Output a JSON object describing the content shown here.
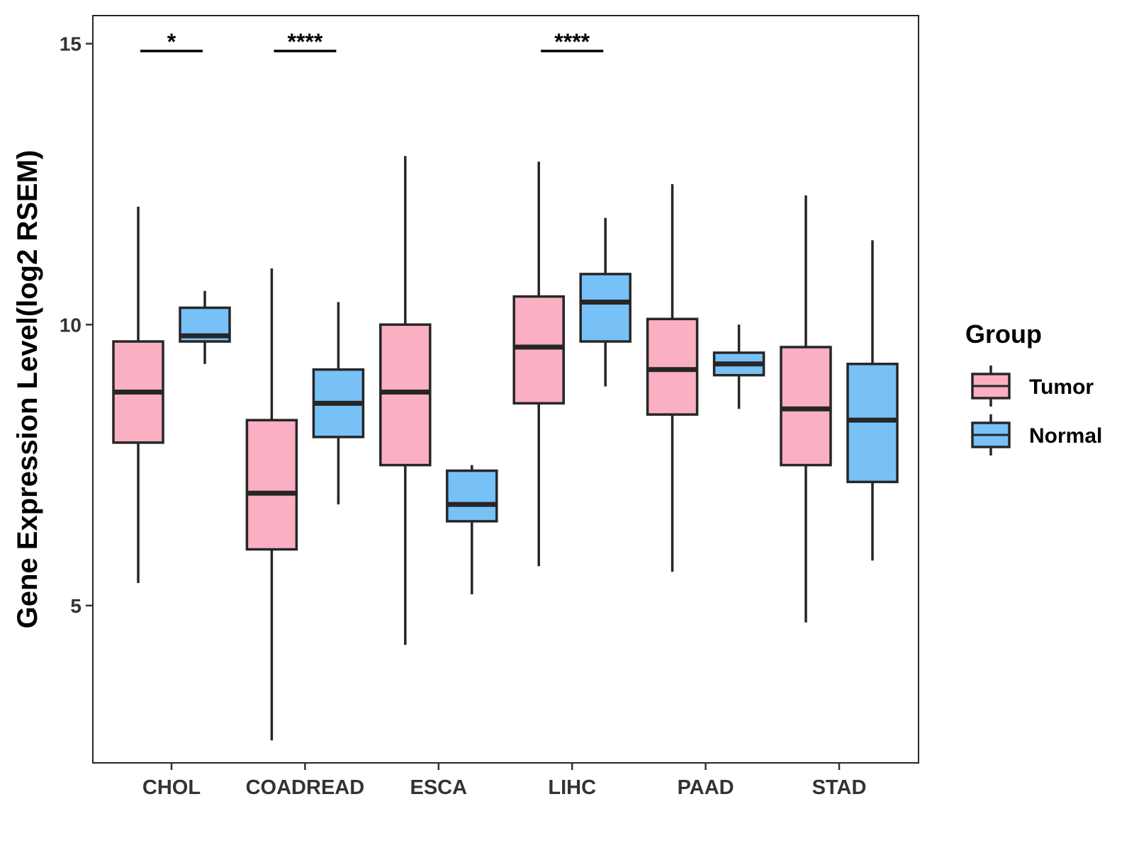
{
  "chart_data": {
    "type": "boxplot",
    "title": "",
    "xlabel": "",
    "ylabel": "Gene Expression Level(log2 RSEM)",
    "ylim": [
      2.2,
      15.5
    ],
    "yticks": [
      5,
      10,
      15
    ],
    "grid": false,
    "legend_position": "right",
    "categories": [
      "CHOL",
      "COADREAD",
      "ESCA",
      "LIHC",
      "PAAD",
      "STAD"
    ],
    "legend": {
      "title": "Group",
      "entries": [
        "Tumor",
        "Normal"
      ]
    },
    "colors": {
      "Tumor": "#FAB0C2",
      "Normal": "#77C1F7",
      "outline": "#262626"
    },
    "series": [
      {
        "name": "Tumor",
        "boxes": [
          {
            "category": "CHOL",
            "whisker_low": 5.4,
            "q1": 7.9,
            "median": 8.8,
            "q3": 9.7,
            "whisker_high": 12.1
          },
          {
            "category": "COADREAD",
            "whisker_low": 2.6,
            "q1": 6.0,
            "median": 7.0,
            "q3": 8.3,
            "whisker_high": 11.0
          },
          {
            "category": "ESCA",
            "whisker_low": 4.3,
            "q1": 7.5,
            "median": 8.8,
            "q3": 10.0,
            "whisker_high": 13.0
          },
          {
            "category": "LIHC",
            "whisker_low": 5.7,
            "q1": 8.6,
            "median": 9.6,
            "q3": 10.5,
            "whisker_high": 12.9
          },
          {
            "category": "PAAD",
            "whisker_low": 5.6,
            "q1": 8.4,
            "median": 9.2,
            "q3": 10.1,
            "whisker_high": 12.5
          },
          {
            "category": "STAD",
            "whisker_low": 4.7,
            "q1": 7.5,
            "median": 8.5,
            "q3": 9.6,
            "whisker_high": 12.3
          }
        ]
      },
      {
        "name": "Normal",
        "boxes": [
          {
            "category": "CHOL",
            "whisker_low": 9.3,
            "q1": 9.7,
            "median": 9.8,
            "q3": 10.3,
            "whisker_high": 10.6
          },
          {
            "category": "COADREAD",
            "whisker_low": 6.8,
            "q1": 8.0,
            "median": 8.6,
            "q3": 9.2,
            "whisker_high": 10.4
          },
          {
            "category": "ESCA",
            "whisker_low": 5.2,
            "q1": 6.5,
            "median": 6.8,
            "q3": 7.4,
            "whisker_high": 7.5
          },
          {
            "category": "LIHC",
            "whisker_low": 8.9,
            "q1": 9.7,
            "median": 10.4,
            "q3": 10.9,
            "whisker_high": 11.9
          },
          {
            "category": "PAAD",
            "whisker_low": 8.5,
            "q1": 9.1,
            "median": 9.3,
            "q3": 9.5,
            "whisker_high": 10.0
          },
          {
            "category": "STAD",
            "whisker_low": 5.8,
            "q1": 7.2,
            "median": 8.3,
            "q3": 9.3,
            "whisker_high": 11.5
          }
        ]
      }
    ],
    "significance": [
      {
        "category": "CHOL",
        "label": "*",
        "y": 14.87
      },
      {
        "category": "COADREAD",
        "label": "****",
        "y": 14.87
      },
      {
        "category": "LIHC",
        "label": "****",
        "y": 14.87
      }
    ]
  }
}
